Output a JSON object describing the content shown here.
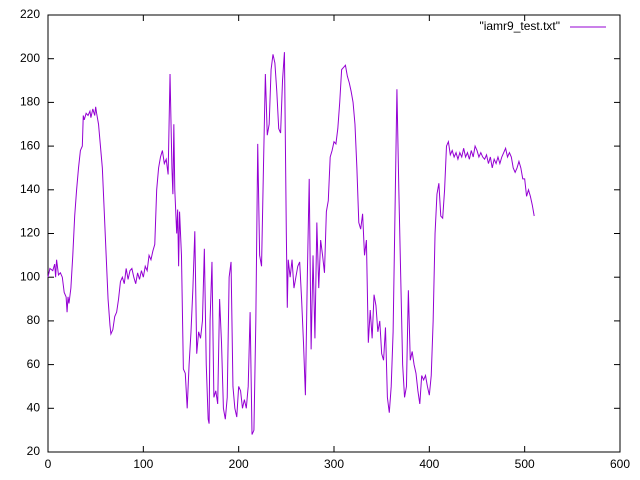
{
  "chart_data": {
    "type": "line",
    "x": [
      0,
      2,
      5,
      7,
      8,
      9,
      11,
      13,
      15,
      17,
      19,
      20,
      21,
      22,
      24,
      26,
      28,
      30,
      32,
      34,
      36,
      37,
      38,
      40,
      42,
      44,
      45,
      47,
      49,
      50,
      51,
      53,
      55,
      57,
      59,
      61,
      63,
      65,
      66,
      68,
      70,
      72,
      74,
      76,
      78,
      80,
      82,
      84,
      86,
      88,
      90,
      92,
      94,
      96,
      98,
      100,
      102,
      104,
      106,
      108,
      110,
      112,
      114,
      116,
      118,
      120,
      122,
      124,
      126,
      128,
      130,
      131,
      132,
      133,
      135,
      136,
      137,
      138,
      140,
      142,
      144,
      146,
      148,
      150,
      152,
      154,
      156,
      158,
      160,
      162,
      164,
      166,
      168,
      169,
      170,
      172,
      174,
      176,
      178,
      180,
      182,
      184,
      186,
      188,
      190,
      192,
      194,
      196,
      198,
      200,
      202,
      204,
      206,
      208,
      210,
      212,
      214,
      216,
      218,
      220,
      222,
      224,
      226,
      228,
      230,
      232,
      234,
      236,
      238,
      240,
      242,
      244,
      246,
      248,
      250,
      251,
      252,
      254,
      256,
      258,
      260,
      262,
      264,
      266,
      268,
      270,
      272,
      274,
      276,
      278,
      280,
      282,
      284,
      286,
      288,
      290,
      292,
      294,
      296,
      298,
      300,
      302,
      304,
      306,
      308,
      310,
      312,
      314,
      316,
      318,
      320,
      322,
      324,
      326,
      328,
      330,
      332,
      334,
      336,
      338,
      340,
      342,
      344,
      346,
      348,
      350,
      352,
      354,
      356,
      358,
      360,
      362,
      364,
      366,
      368,
      370,
      372,
      374,
      376,
      378,
      380,
      382,
      384,
      386,
      388,
      390,
      392,
      394,
      396,
      398,
      400,
      402,
      404,
      406,
      408,
      410,
      412,
      414,
      416,
      418,
      420,
      422,
      424,
      426,
      428,
      430,
      432,
      434,
      436,
      438,
      440,
      442,
      444,
      446,
      448,
      450,
      452,
      454,
      456,
      458,
      460,
      462,
      464,
      466,
      468,
      470,
      472,
      474,
      476,
      478,
      480,
      482,
      484,
      486,
      488,
      490,
      492,
      494,
      496,
      498,
      500,
      502,
      504,
      506,
      508,
      510
    ],
    "series": [
      {
        "name": "\"iamr9_test.txt\"",
        "color": "#9400d3",
        "values": [
          100,
          104,
          103,
          106,
          100,
          108,
          101,
          102,
          100,
          93,
          91,
          84,
          91,
          88,
          95,
          110,
          128,
          140,
          150,
          158,
          160,
          174,
          172,
          175,
          174,
          176,
          173,
          177,
          174,
          178,
          175,
          170,
          160,
          150,
          130,
          110,
          90,
          78,
          74,
          76,
          82,
          84,
          90,
          98,
          100,
          97,
          104,
          99,
          103,
          104,
          100,
          97,
          102,
          99,
          103,
          100,
          105,
          103,
          110,
          108,
          112,
          115,
          140,
          150,
          155,
          158,
          152,
          154,
          147,
          193,
          150,
          138,
          170,
          140,
          120,
          131,
          105,
          130,
          110,
          58,
          56,
          40,
          60,
          75,
          95,
          121,
          65,
          75,
          72,
          80,
          113,
          60,
          35,
          33,
          80,
          107,
          45,
          48,
          42,
          90,
          70,
          40,
          35,
          45,
          100,
          107,
          50,
          40,
          36,
          50,
          48,
          40,
          44,
          40,
          50,
          84,
          28,
          30,
          80,
          161,
          110,
          105,
          150,
          193,
          165,
          170,
          195,
          202,
          198,
          185,
          168,
          166,
          190,
          203,
          120,
          86,
          108,
          100,
          108,
          95,
          100,
          105,
          107,
          90,
          70,
          46,
          100,
          145,
          67,
          110,
          72,
          125,
          95,
          117,
          110,
          102,
          130,
          135,
          155,
          158,
          162,
          161,
          168,
          180,
          195,
          196,
          197,
          192,
          189,
          185,
          180,
          170,
          150,
          125,
          122,
          129,
          110,
          117,
          70,
          85,
          72,
          92,
          87,
          75,
          80,
          65,
          62,
          77,
          45,
          38,
          50,
          75,
          130,
          186,
          140,
          100,
          60,
          45,
          50,
          94,
          62,
          66,
          60,
          56,
          48,
          42,
          55,
          53,
          55,
          50,
          46,
          55,
          80,
          120,
          138,
          143,
          128,
          127,
          140,
          160,
          162,
          156,
          158,
          155,
          157,
          154,
          157,
          155,
          159,
          155,
          157,
          154,
          158,
          155,
          160,
          158,
          155,
          157,
          155,
          154,
          156,
          152,
          155,
          150,
          154,
          152,
          155,
          152,
          155,
          157,
          159,
          155,
          157,
          155,
          150,
          148,
          150,
          153,
          150,
          145,
          145,
          137,
          140,
          137,
          133,
          128
        ]
      }
    ],
    "xlim": [
      0,
      600
    ],
    "xticks": [
      0,
      100,
      200,
      300,
      400,
      500,
      600
    ],
    "ylim": [
      20,
      220
    ],
    "yticks": [
      20,
      40,
      60,
      80,
      100,
      120,
      140,
      160,
      180,
      200,
      220
    ],
    "legend": "top-right"
  }
}
